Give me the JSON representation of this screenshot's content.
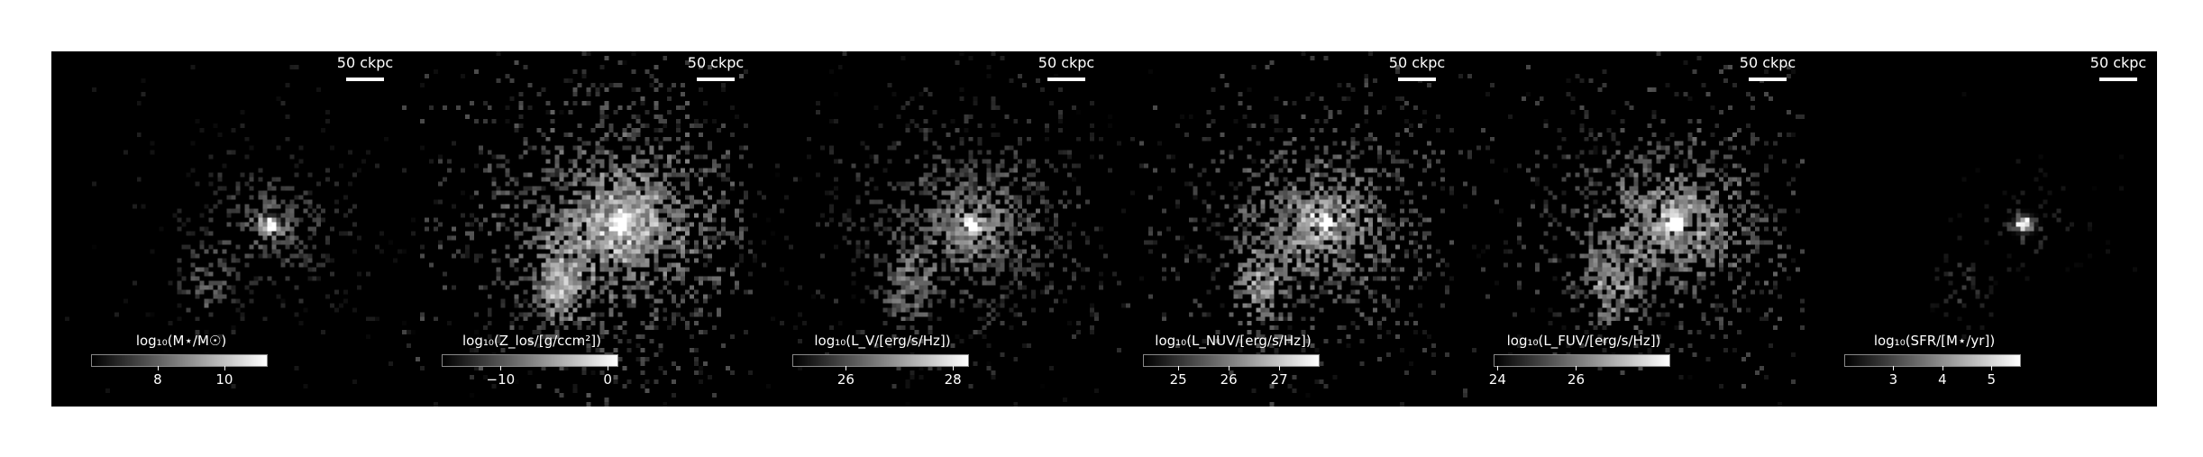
{
  "scalebar_label": "50 ckpc",
  "panels": [
    {
      "colorbar": {
        "title": "log₁₀(M⋆/M☉)",
        "range": [
          6.0,
          11.3
        ],
        "ticks": [
          {
            "value": 8,
            "label": "8"
          },
          {
            "value": 10,
            "label": "10"
          }
        ]
      },
      "brightness": {
        "core": 1.0,
        "halo": 0.55,
        "noise": 0.25,
        "density": 0.55,
        "spread": 1.0
      }
    },
    {
      "colorbar": {
        "title": "log₁₀(Z_los/[g/ccm²])",
        "range": [
          -15.5,
          1.0
        ],
        "ticks": [
          {
            "value": -10,
            "label": "−10"
          },
          {
            "value": 0,
            "label": "0"
          }
        ]
      },
      "brightness": {
        "core": 0.85,
        "halo": 0.75,
        "noise": 0.6,
        "density": 1.0,
        "spread": 1.6
      }
    },
    {
      "colorbar": {
        "title": "log₁₀(L_V/[erg/s/Hz])",
        "range": [
          25.0,
          28.3
        ],
        "ticks": [
          {
            "value": 26,
            "label": "26"
          },
          {
            "value": 28,
            "label": "28"
          }
        ]
      },
      "brightness": {
        "core": 1.0,
        "halo": 0.6,
        "noise": 0.4,
        "density": 0.8,
        "spread": 1.35
      }
    },
    {
      "colorbar": {
        "title": "log₁₀(L_NUV/[erg/s/Hz])",
        "range": [
          24.3,
          27.8
        ],
        "ticks": [
          {
            "value": 25,
            "label": "25"
          },
          {
            "value": 26,
            "label": "26"
          },
          {
            "value": 27,
            "label": "27"
          }
        ]
      },
      "brightness": {
        "core": 0.95,
        "halo": 0.7,
        "noise": 0.55,
        "density": 0.85,
        "spread": 1.4
      }
    },
    {
      "colorbar": {
        "title": "log₁₀(L_FUV/[erg/s/Hz])",
        "range": [
          23.9,
          28.4
        ],
        "ticks": [
          {
            "value": 24,
            "label": "24"
          },
          {
            "value": 26,
            "label": "26"
          }
        ]
      },
      "brightness": {
        "core": 0.95,
        "halo": 0.72,
        "noise": 0.55,
        "density": 0.85,
        "spread": 1.4
      }
    },
    {
      "colorbar": {
        "title": "log₁₀(SFR/[M⋆/yr])",
        "range": [
          2.0,
          5.6
        ],
        "ticks": [
          {
            "value": 3,
            "label": "3"
          },
          {
            "value": 4,
            "label": "4"
          },
          {
            "value": 5,
            "label": "5"
          }
        ]
      },
      "brightness": {
        "core": 1.0,
        "halo": 0.4,
        "noise": 0.15,
        "density": 0.3,
        "spread": 0.55
      }
    }
  ]
}
